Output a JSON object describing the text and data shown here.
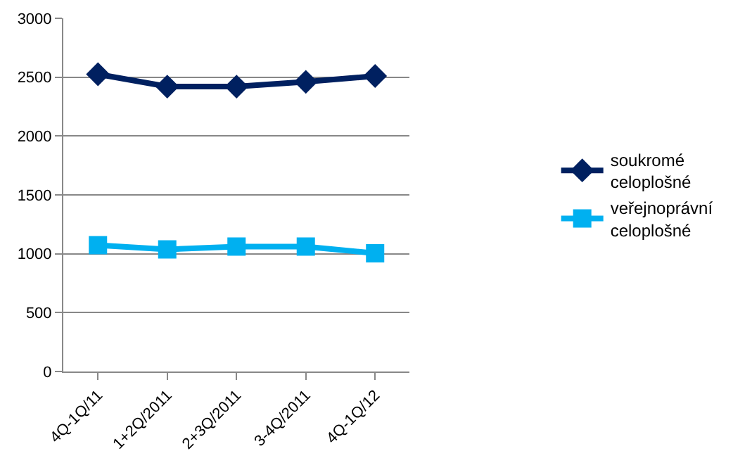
{
  "chart_data": {
    "type": "line",
    "categories": [
      "4Q-1Q/11",
      "1+2Q/2011",
      "2+3Q/2011",
      "3-4Q/2011",
      "4Q-1Q/12"
    ],
    "series": [
      {
        "name": "soukromé celoplošné",
        "color": "#002060",
        "marker": "diamond",
        "values": [
          2525,
          2420,
          2420,
          2460,
          2510
        ]
      },
      {
        "name": "veřejnoprávní celoplošné",
        "color": "#00b0f0",
        "marker": "square",
        "values": [
          1073,
          1037,
          1061,
          1061,
          1004
        ]
      }
    ],
    "ylim": [
      0,
      3000
    ],
    "yticks": [
      0,
      500,
      1000,
      1500,
      2000,
      2500,
      3000
    ],
    "grid": "y",
    "legend": "right",
    "line_style": "solid"
  }
}
